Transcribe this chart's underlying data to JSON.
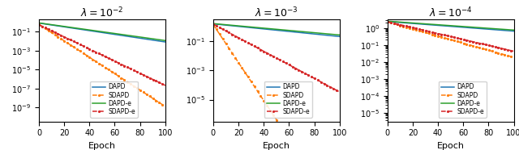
{
  "subplots": [
    {
      "title": "$\\lambda = 10^{-2}$",
      "xlabel": "Epoch",
      "xlim": [
        0,
        100
      ],
      "ylim_log": [
        -10.5,
        0.3
      ],
      "curves": {
        "DAPD": {
          "color": "#1f77b4",
          "ls": "-",
          "lw": 1.1,
          "a0_log": -0.08,
          "rate": 0.046,
          "clip": -12
        },
        "SDAPD": {
          "color": "#ff7f0e",
          "ls": "--",
          "lw": 1.1,
          "a0_log": -0.22,
          "rate": 0.2,
          "clip": -12,
          "marker": "."
        },
        "DAPD-e": {
          "color": "#2ca02c",
          "ls": "-",
          "lw": 1.1,
          "a0_log": -0.06,
          "rate": 0.043,
          "clip": -12
        },
        "SDAPD-e": {
          "color": "#d62728",
          "ls": "--",
          "lw": 1.1,
          "a0_log": -0.25,
          "rate": 0.148,
          "clip": -12,
          "marker": "."
        }
      }
    },
    {
      "title": "$\\lambda = 10^{-3}$",
      "xlabel": "Epoch",
      "xlim": [
        0,
        100
      ],
      "ylim_log": [
        -6.5,
        0.5
      ],
      "curves": {
        "DAPD": {
          "color": "#1f77b4",
          "ls": "-",
          "lw": 1.1,
          "a0_log": 0.2,
          "rate": 0.02,
          "clip": -8
        },
        "SDAPD": {
          "color": "#ff7f0e",
          "ls": "--",
          "lw": 1.1,
          "a0_log": 0.15,
          "rate": 0.3,
          "clip": -8,
          "marker": "."
        },
        "DAPD-e": {
          "color": "#2ca02c",
          "ls": "-",
          "lw": 1.1,
          "a0_log": 0.22,
          "rate": 0.018,
          "clip": -8
        },
        "SDAPD-e": {
          "color": "#d62728",
          "ls": "--",
          "lw": 1.1,
          "a0_log": 0.18,
          "rate": 0.107,
          "clip": -8,
          "marker": "."
        }
      }
    },
    {
      "title": "$\\lambda = 10^{-4}$",
      "xlabel": "Epoch",
      "xlim": [
        0,
        100
      ],
      "ylim_log": [
        -5.5,
        0.5
      ],
      "curves": {
        "DAPD": {
          "color": "#1f77b4",
          "ls": "-",
          "lw": 1.1,
          "a0_log": 0.38,
          "rate": 0.013,
          "clip": -6
        },
        "SDAPD": {
          "color": "#ff7f0e",
          "ls": "--",
          "lw": 1.1,
          "a0_log": 0.36,
          "rate": 0.048,
          "clip": -6,
          "marker": "."
        },
        "DAPD-e": {
          "color": "#2ca02c",
          "ls": "-",
          "lw": 1.1,
          "a0_log": 0.4,
          "rate": 0.012,
          "clip": -6
        },
        "SDAPD-e": {
          "color": "#d62728",
          "ls": "--",
          "lw": 1.1,
          "a0_log": 0.37,
          "rate": 0.04,
          "clip": -6,
          "marker": "."
        }
      }
    }
  ]
}
